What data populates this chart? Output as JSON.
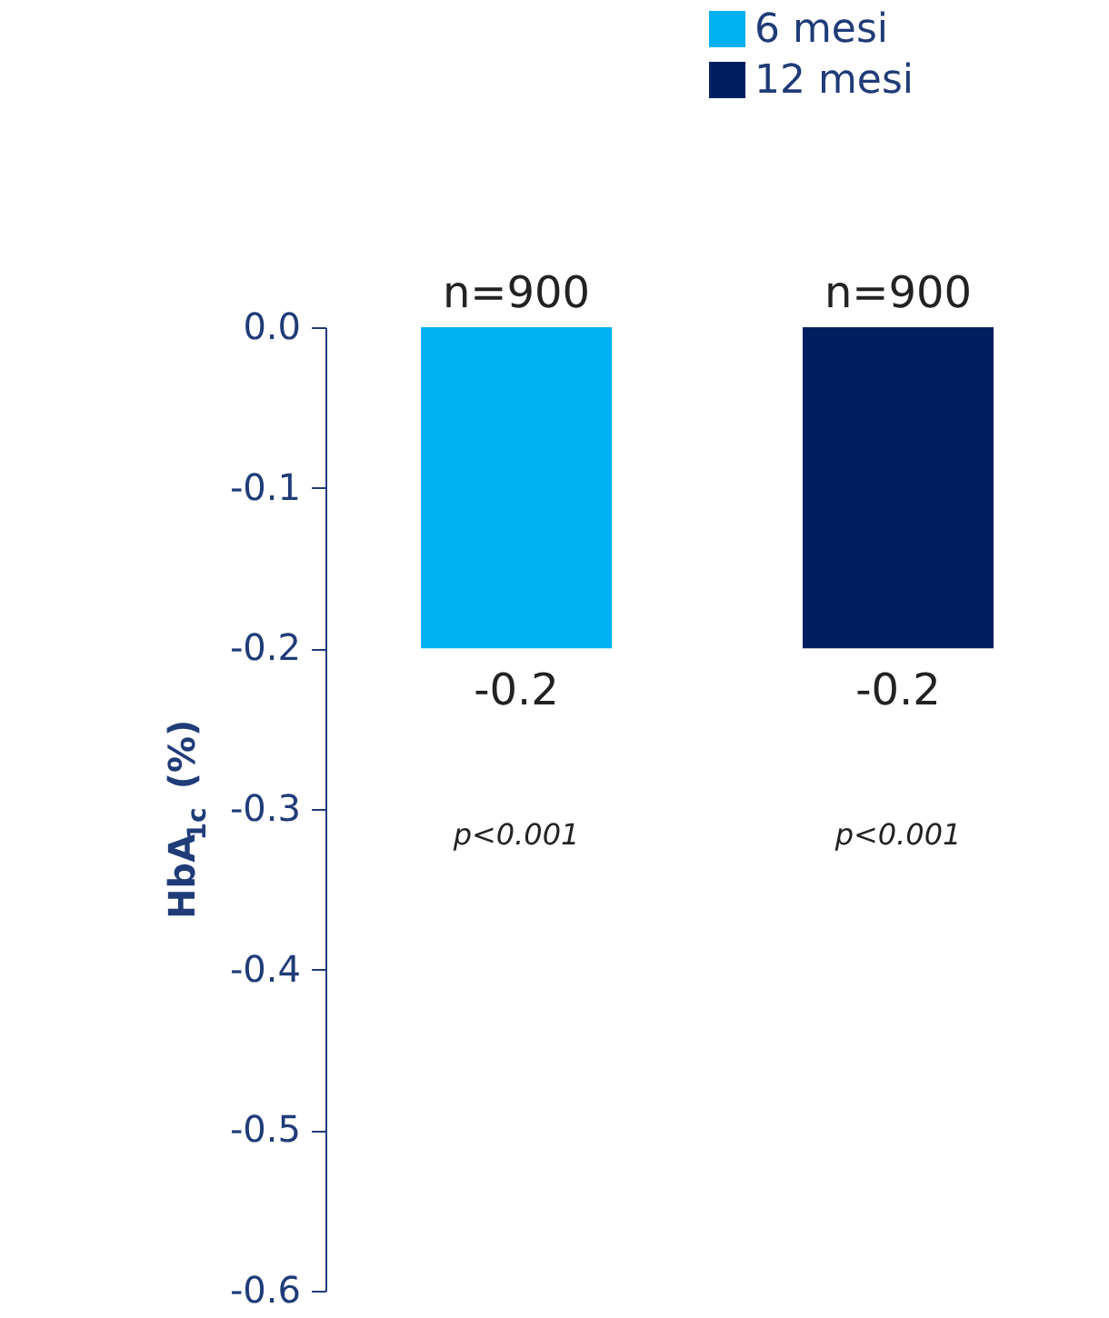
{
  "chart_data": {
    "type": "bar",
    "ylabel": "HbA$_{1c}$ (%)",
    "categories": [
      null,
      null
    ],
    "series": [
      {
        "name": "6 mesi",
        "color": "#00b0f0",
        "values": [
          -0.2,
          null
        ]
      },
      {
        "name": "12 mesi",
        "color": "#001f60",
        "values": [
          null,
          -0.2
        ]
      }
    ],
    "ylim": [
      -0.6,
      0
    ],
    "yticks": [
      {
        "value": 0,
        "label": "0.0"
      },
      -0.1,
      -0.2,
      -0.3,
      -0.4,
      -0.5,
      -0.6
    ],
    "data_labels": true,
    "stacked": true,
    "annotations": [
      "n=900",
      "n=900",
      "p<0.001",
      "p<0.001"
    ],
    "grid": false,
    "legend": "top right"
  }
}
